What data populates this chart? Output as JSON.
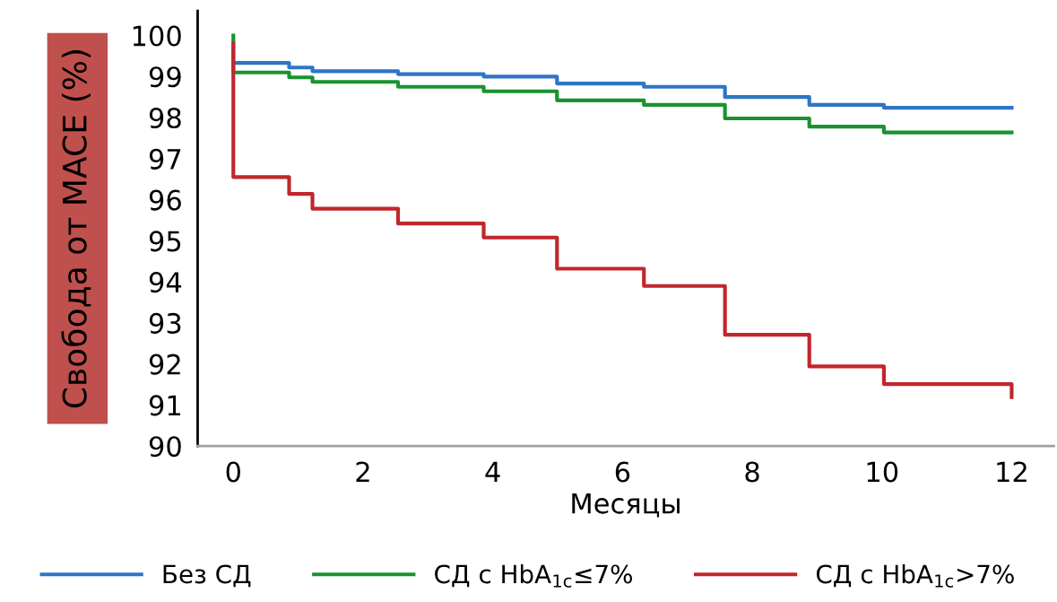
{
  "chart_data": {
    "type": "step",
    "xlabel": "Месяцы",
    "ylabel": "Свобода от MACE (%)",
    "xlim": [
      -0.55,
      12.65
    ],
    "ylim": [
      90,
      100.6
    ],
    "xticks": [
      0,
      2,
      4,
      6,
      8,
      10,
      12
    ],
    "yticks": [
      90,
      91,
      92,
      93,
      94,
      95,
      96,
      97,
      98,
      99,
      100
    ],
    "grid": false,
    "legend": "bottom",
    "line_style": "solid",
    "marker": "none",
    "series": [
      {
        "name": "Без СД",
        "color": "#2e75c6",
        "x": [
          0,
          0.86,
          1.22,
          2.54,
          3.86,
          4.99,
          6.33,
          7.58,
          8.88,
          10.03,
          12
        ],
        "values": [
          99.33,
          99.22,
          99.13,
          99.06,
          99.0,
          98.83,
          98.75,
          98.5,
          98.31,
          98.24,
          98.24
        ]
      },
      {
        "name": "СД с HbA$_{1c}$≤7%",
        "color": "#1a9331",
        "x": [
          0,
          0,
          0.86,
          1.22,
          2.54,
          3.86,
          4.99,
          6.33,
          7.58,
          8.88,
          10.03,
          12
        ],
        "values": [
          100,
          99.1,
          98.98,
          98.87,
          98.75,
          98.64,
          98.42,
          98.31,
          97.98,
          97.78,
          97.64,
          97.64
        ]
      },
      {
        "name": "СД с HbA$_{1c}$>7%",
        "color": "#c0272d",
        "x": [
          0,
          0,
          0.86,
          1.22,
          2.54,
          3.86,
          4.99,
          6.33,
          7.58,
          8.88,
          10.03,
          12,
          12
        ],
        "values": [
          99.8,
          96.55,
          96.14,
          95.78,
          95.42,
          95.08,
          94.32,
          93.9,
          92.71,
          91.94,
          91.51,
          91.51,
          91.19
        ]
      }
    ]
  }
}
